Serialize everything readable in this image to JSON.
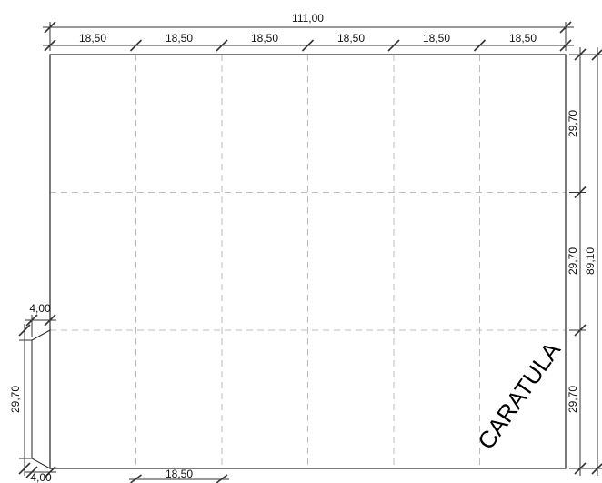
{
  "colors": {
    "outline": "#222222",
    "fold_lines": "#bdbdbd",
    "dimension_lines": "#333333"
  },
  "dimensions": {
    "overall_width": "111,00",
    "column_widths": [
      "18,50",
      "18,50",
      "18,50",
      "18,50",
      "18,50",
      "18,50"
    ],
    "row_heights": [
      "29,70",
      "29,70",
      "29,70"
    ],
    "overall_height": "89,10",
    "flap_width_top": "4,00",
    "flap_width_bottom": "4,00",
    "flap_height": "29,70",
    "bottom_column_width": "18,50"
  },
  "sheet": {
    "columns": 6,
    "rows": 3,
    "label": "CARATULA"
  }
}
